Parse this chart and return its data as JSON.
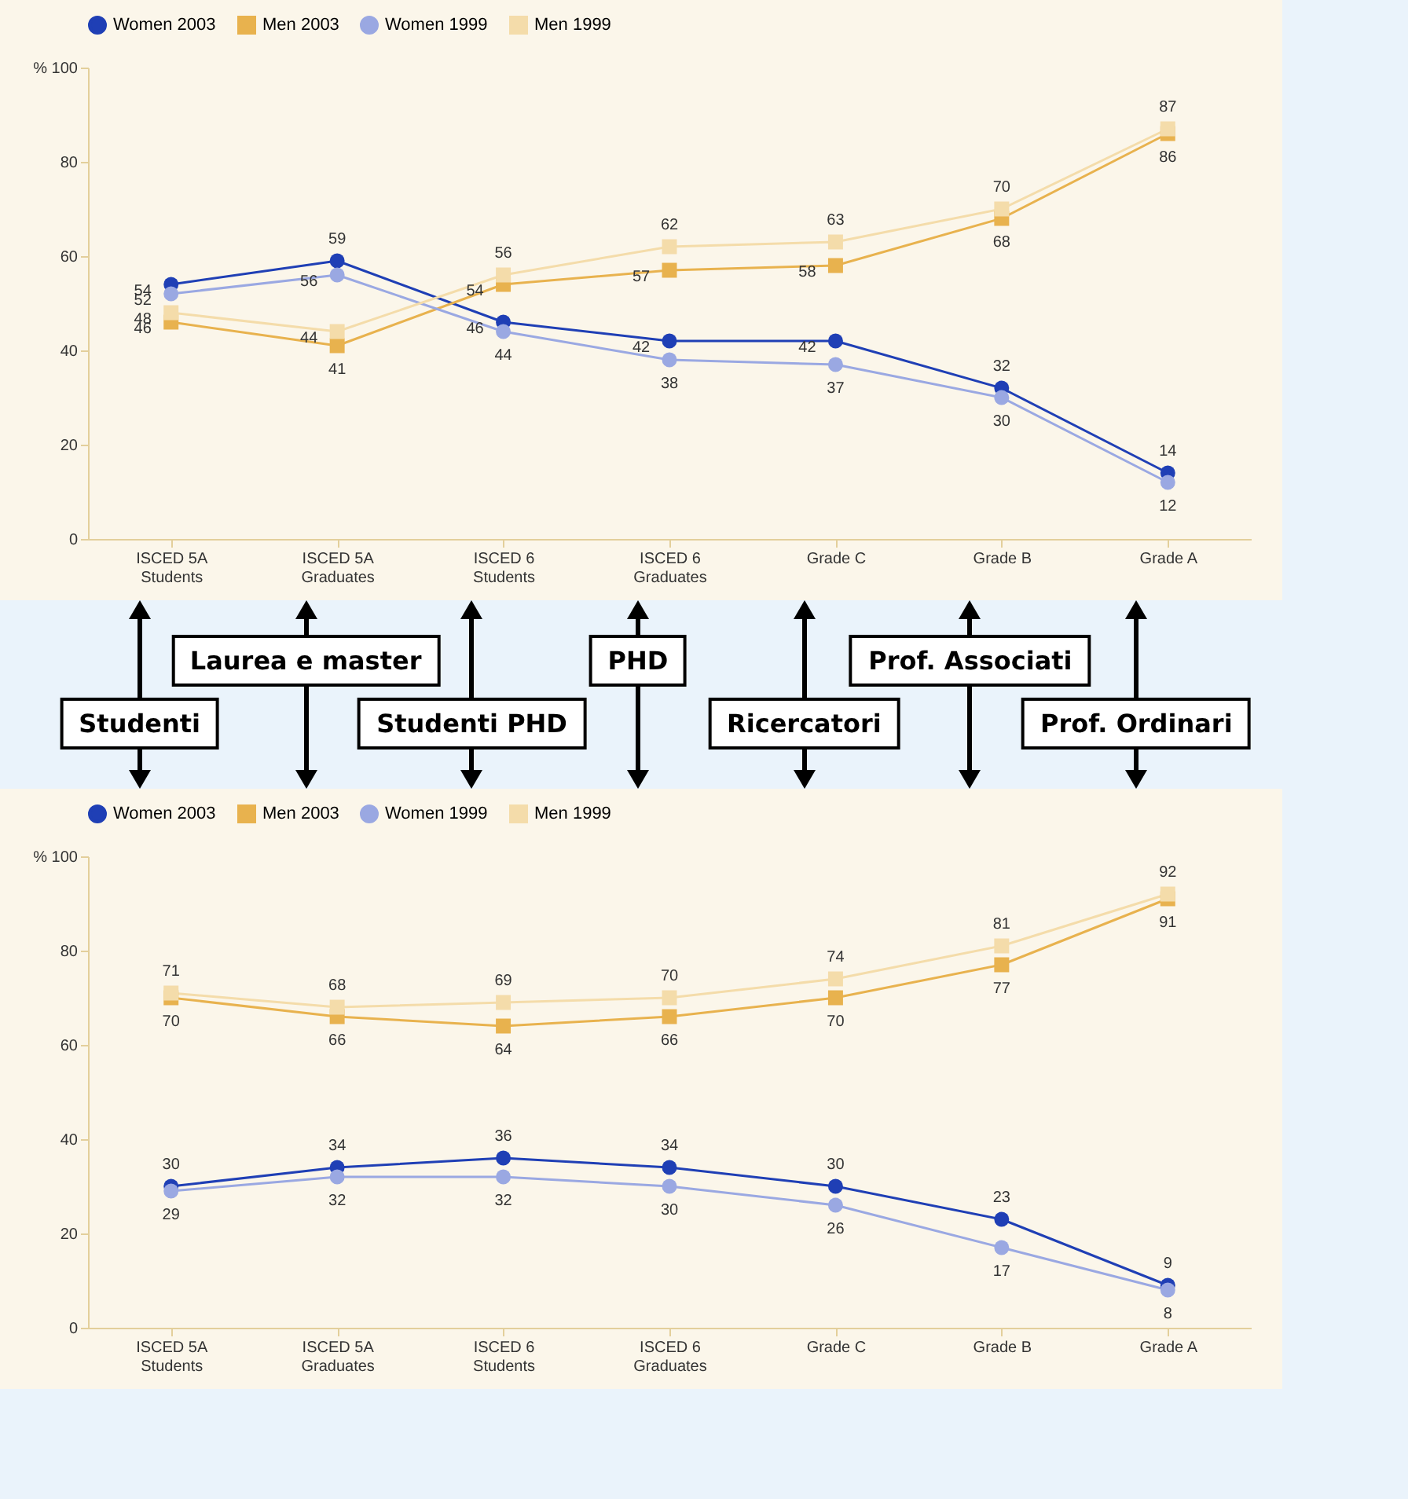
{
  "chart_data": [
    {
      "type": "line",
      "categories": [
        "ISCED 5A\nStudents",
        "ISCED 5A\nGraduates",
        "ISCED 6\nStudents",
        "ISCED 6\nGraduates",
        "Grade C",
        "Grade B",
        "Grade A"
      ],
      "series": [
        {
          "name": "Women 2003",
          "color": "#1f3fb5",
          "marker": "circle",
          "values": [
            54,
            59,
            46,
            42,
            42,
            32,
            14
          ]
        },
        {
          "name": "Men 2003",
          "color": "#e8b24e",
          "marker": "square",
          "values": [
            46,
            41,
            54,
            57,
            58,
            68,
            86
          ]
        },
        {
          "name": "Women 1999",
          "color": "#9aa8e2",
          "marker": "circle",
          "values": [
            52,
            56,
            44,
            38,
            37,
            30,
            12
          ]
        },
        {
          "name": "Men 1999",
          "color": "#f4dcaa",
          "marker": "square",
          "values": [
            48,
            44,
            56,
            62,
            63,
            70,
            87
          ]
        }
      ],
      "ylim": [
        0,
        100
      ],
      "yticks": [
        0,
        20,
        40,
        60,
        80,
        {
          "value": 100,
          "label": "% 100"
        }
      ],
      "grid": false,
      "legend": "top",
      "data_labels": true,
      "annotations": [
        "Studenti",
        "Laurea e master",
        "Studenti PHD",
        "PHD",
        "Ricercatori",
        "Prof. Associati",
        "Prof. Ordinari"
      ]
    },
    {
      "type": "line",
      "categories": [
        "ISCED 5A\nStudents",
        "ISCED 5A\nGraduates",
        "ISCED 6\nStudents",
        "ISCED 6\nGraduates",
        "Grade C",
        "Grade B",
        "Grade A"
      ],
      "series": [
        {
          "name": "Women 2003",
          "color": "#1f3fb5",
          "marker": "circle",
          "values": [
            30,
            34,
            36,
            34,
            30,
            23,
            9
          ]
        },
        {
          "name": "Men 2003",
          "color": "#e8b24e",
          "marker": "square",
          "values": [
            70,
            66,
            64,
            66,
            70,
            77,
            91
          ]
        },
        {
          "name": "Women 1999",
          "color": "#9aa8e2",
          "marker": "circle",
          "values": [
            29,
            32,
            32,
            30,
            26,
            17,
            8
          ]
        },
        {
          "name": "Men 1999",
          "color": "#f4dcaa",
          "marker": "square",
          "values": [
            71,
            68,
            69,
            70,
            74,
            81,
            92
          ]
        }
      ],
      "ylim": [
        0,
        100
      ],
      "yticks": [
        0,
        20,
        40,
        60,
        80,
        {
          "value": 100,
          "label": "% 100"
        }
      ],
      "grid": false,
      "legend": "top",
      "data_labels": true
    }
  ]
}
